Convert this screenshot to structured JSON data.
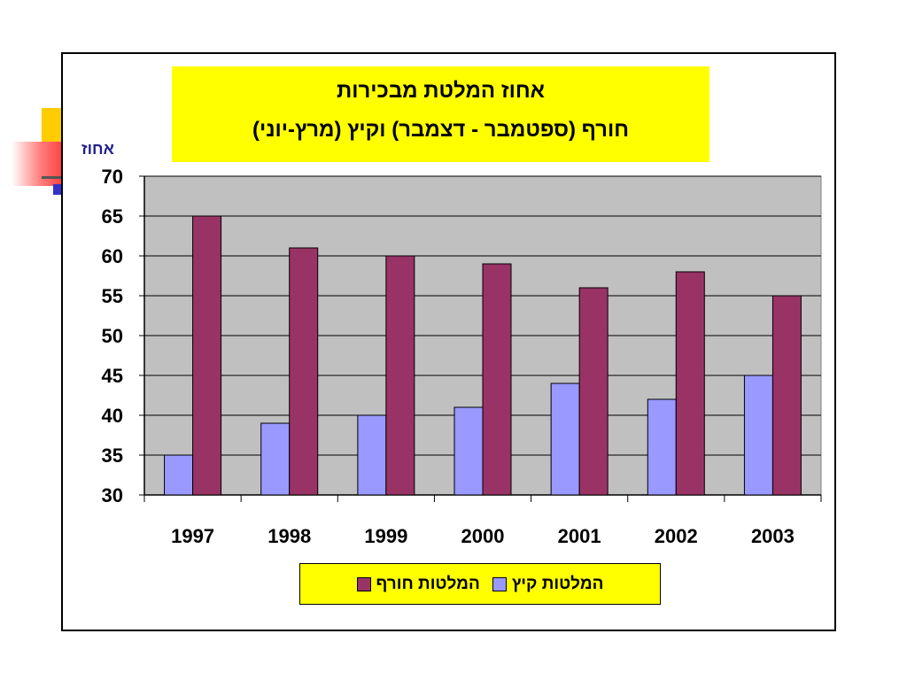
{
  "title": "אחוז המלטת מבכירות",
  "subtitle": "חורף  (ספטמבר - דצמבר)   וקיץ  (מרץ-יוני)",
  "colors": {
    "summer": "#9999ff",
    "winter": "#993366",
    "plot_bg": "#c0c0c0",
    "title_bg": "#ffff00"
  },
  "chart_data": {
    "type": "bar",
    "categories": [
      "1997",
      "1998",
      "1999",
      "2000",
      "2001",
      "2002",
      "2003"
    ],
    "series": [
      {
        "name": "המלטות קיץ",
        "values": [
          35,
          39,
          40,
          41,
          44,
          42,
          45
        ]
      },
      {
        "name": "המלטות חורף",
        "values": [
          65,
          61,
          60,
          59,
          56,
          58,
          55
        ]
      }
    ],
    "ylabel": "אחוז",
    "ylim": [
      30,
      70
    ],
    "yticks": [
      "30",
      "35",
      "40",
      "45",
      "50",
      "55",
      "60",
      "65",
      "70"
    ],
    "grid": true,
    "legend_position": "bottom"
  }
}
